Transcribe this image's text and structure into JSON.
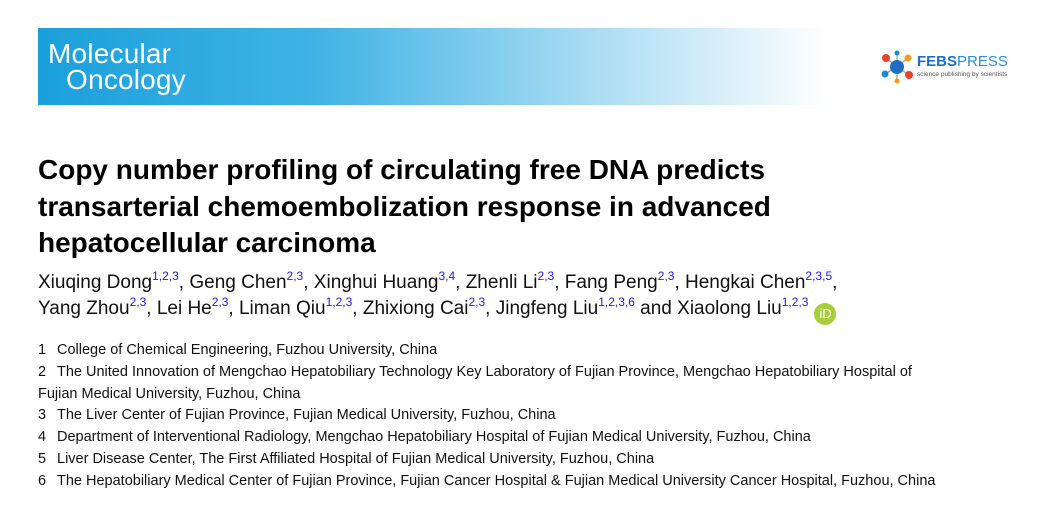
{
  "header": {
    "journal": [
      "Molecular",
      "Oncology"
    ],
    "publisher": {
      "name": "FEBS",
      "name_suffix": "PRESS",
      "tagline": "science publishing by scientists"
    }
  },
  "title_lines": [
    "Copy number profiling of circulating free DNA predicts",
    "transarterial chemoembolization response in advanced",
    "hepatocellular carcinoma"
  ],
  "authors": {
    "lines": [
      [
        {
          "name": "Xiuqing Dong",
          "affil": "1,2,3",
          "after": ", "
        },
        {
          "name": "Geng Chen",
          "affil": "2,3",
          "after": ", "
        },
        {
          "name": "Xinghui Huang",
          "affil": "3,4",
          "after": ", "
        },
        {
          "name": "Zhenli Li",
          "affil": "2,3",
          "after": ", "
        },
        {
          "name": "Fang Peng",
          "affil": "2,3",
          "after": ", "
        },
        {
          "name": "Hengkai Chen",
          "affil": "2,3,5",
          "after": ","
        }
      ],
      [
        {
          "name": "Yang Zhou",
          "affil": "2,3",
          "after": ", "
        },
        {
          "name": "Lei He",
          "affil": "2,3",
          "after": ", "
        },
        {
          "name": "Liman Qiu",
          "affil": "1,2,3",
          "after": ", "
        },
        {
          "name": "Zhixiong Cai",
          "affil": "2,3",
          "after": ", "
        },
        {
          "name": "Jingfeng Liu",
          "affil": "1,2,3,6",
          "after": " and "
        },
        {
          "name": "Xiaolong Liu",
          "affil": "1,2,3"
        }
      ]
    ],
    "orcid": "iD"
  },
  "affiliations": [
    {
      "number": "1",
      "lines": [
        "College of Chemical Engineering, Fuzhou University, China"
      ]
    },
    {
      "number": "2",
      "lines": [
        "The United Innovation of Mengchao Hepatobiliary Technology Key Laboratory of Fujian Province, Mengchao Hepatobiliary Hospital of",
        "Fujian Medical University, Fuzhou, China"
      ]
    },
    {
      "number": "3",
      "lines": [
        "The Liver Center of Fujian Province, Fujian Medical University, Fuzhou, China"
      ]
    },
    {
      "number": "4",
      "lines": [
        "Department of Interventional Radiology, Mengchao Hepatobiliary Hospital of Fujian Medical University, Fuzhou, China"
      ]
    },
    {
      "number": "5",
      "lines": [
        "Liver Disease Center, The First Affiliated Hospital of Fujian Medical University, Fuzhou, China"
      ]
    },
    {
      "number": "6",
      "lines": [
        "The Hepatobiliary Medical Center of Fujian Province, Fujian Cancer Hospital & Fujian Medical University Cancer Hospital, Fuzhou, China"
      ]
    }
  ]
}
